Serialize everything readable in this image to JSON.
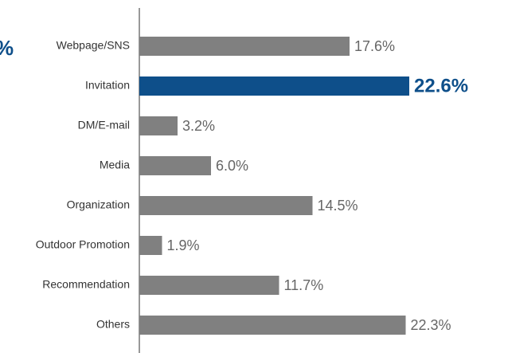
{
  "chart_data": {
    "type": "bar",
    "orientation": "horizontal",
    "annotation": "%",
    "categories": [
      "Webpage/SNS",
      "Invitation",
      "DM/E-mail",
      "Media",
      "Organization",
      "Outdoor Promotion",
      "Recommendation",
      "Others"
    ],
    "values": [
      17.6,
      22.6,
      3.2,
      6.0,
      14.5,
      1.9,
      11.7,
      22.3
    ],
    "value_labels": [
      "17.6%",
      "22.6%",
      "3.2%",
      "6.0%",
      "14.5%",
      "1.9%",
      "11.7%",
      "22.3%"
    ],
    "colors": [
      "#808080",
      "#0e4f8a",
      "#808080",
      "#808080",
      "#808080",
      "#808080",
      "#808080",
      "#808080"
    ],
    "highlight": 1,
    "xlim": [
      0,
      25
    ]
  }
}
